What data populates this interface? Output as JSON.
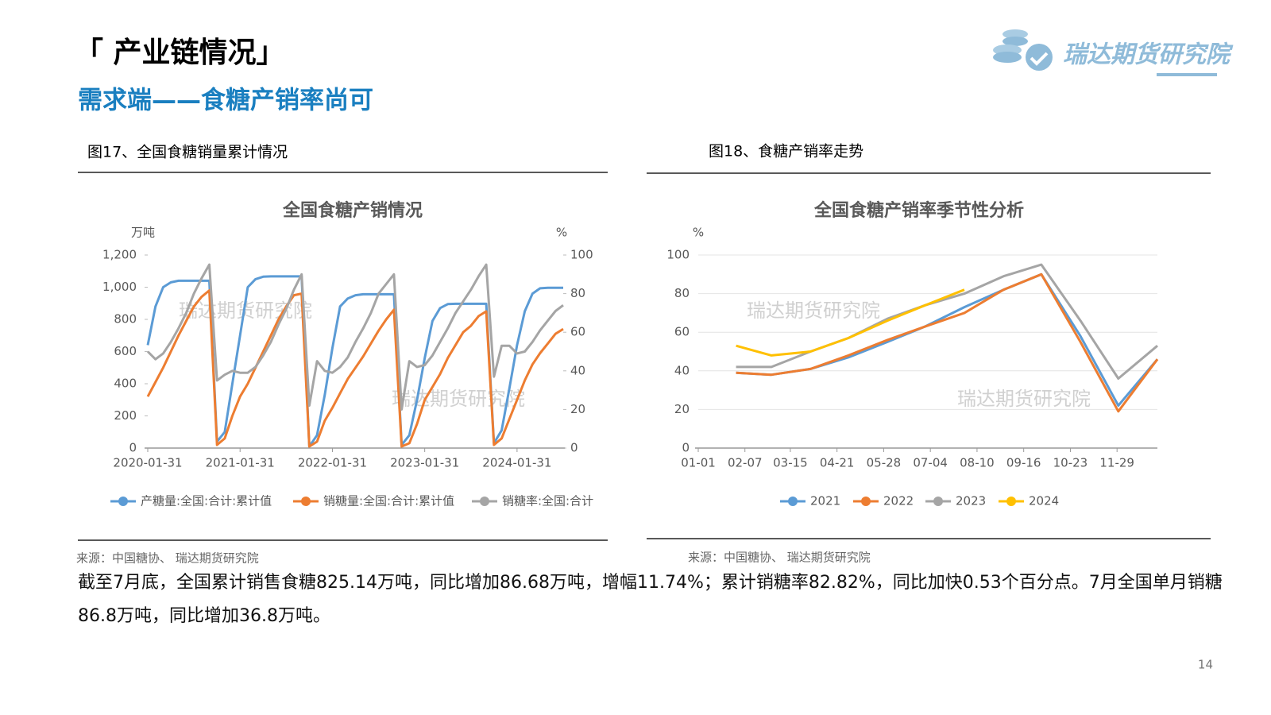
{
  "header": {
    "title": "「 产业链情况」",
    "subtitle": "需求端——食糖产销率尚可",
    "logo": "瑞达期货研究院"
  },
  "figures": [
    {
      "caption": "图17、全国食糖销量累计情况",
      "source": "来源：中国糖协、 瑞达期货研究院"
    },
    {
      "caption": "图18、食糖产销率走势",
      "source": "来源：中国糖协、 瑞达期货研究院"
    }
  ],
  "chart_data": [
    {
      "type": "line",
      "title": "全国食糖产销情况",
      "y_label": "万吨",
      "y2_label": "%",
      "watermark": "瑞达期货研究院",
      "categories": [
        "2020-01-31",
        null,
        null,
        null,
        null,
        null,
        null,
        null,
        null,
        null,
        null,
        null,
        "2021-01-31",
        null,
        null,
        null,
        null,
        null,
        null,
        null,
        null,
        null,
        null,
        null,
        "2022-01-31",
        null,
        null,
        null,
        null,
        null,
        null,
        null,
        null,
        null,
        null,
        null,
        "2023-01-31",
        null,
        null,
        null,
        null,
        null,
        null,
        null,
        null,
        null,
        null,
        null,
        "2024-01-31",
        null,
        null,
        null,
        null,
        null,
        null
      ],
      "series": [
        {
          "name": "产糖量:全国:合计:累计值",
          "color": "#5b9bd5",
          "values": [
            640,
            880,
            1000,
            1030,
            1040,
            1040,
            1040,
            1040,
            1040,
            40,
            100,
            400,
            700,
            1000,
            1050,
            1065,
            1067,
            1067,
            1067,
            1067,
            1067,
            10,
            80,
            330,
            620,
            880,
            930,
            950,
            956,
            956,
            956,
            956,
            956,
            20,
            80,
            300,
            560,
            790,
            870,
            895,
            897,
            897,
            897,
            897,
            897,
            30,
            110,
            370,
            640,
            850,
            960,
            993,
            996,
            996,
            996
          ]
        },
        {
          "name": "销糖量:全国:合计:累计值",
          "color": "#ed7d31",
          "values": [
            320,
            410,
            500,
            600,
            700,
            790,
            880,
            940,
            980,
            20,
            60,
            200,
            320,
            400,
            500,
            600,
            700,
            800,
            880,
            950,
            960,
            10,
            40,
            170,
            250,
            340,
            430,
            500,
            570,
            650,
            730,
            800,
            860,
            10,
            30,
            150,
            300,
            380,
            460,
            560,
            640,
            720,
            760,
            820,
            850,
            20,
            60,
            180,
            300,
            420,
            520,
            590,
            650,
            710,
            740
          ]
        },
        {
          "name": "销糖率:全国:合计",
          "color": "#a5a5a5",
          "axis": "y2",
          "values": [
            50,
            46,
            49,
            55,
            62,
            70,
            80,
            88,
            95,
            35,
            38,
            40,
            39,
            39,
            42,
            48,
            55,
            64,
            72,
            82,
            90,
            22,
            45,
            40,
            39,
            42,
            47,
            55,
            62,
            70,
            80,
            85,
            90,
            20,
            45,
            42,
            43,
            48,
            55,
            62,
            70,
            76,
            82,
            89,
            95,
            37,
            53,
            53,
            49,
            50,
            55,
            61,
            66,
            71,
            74
          ]
        }
      ],
      "ylim": [
        0,
        1200
      ],
      "yticks": [
        0,
        200,
        400,
        600,
        800,
        {
          "value": 1000,
          "label": "1,000"
        },
        {
          "value": 1200,
          "label": "1,200"
        }
      ],
      "y2lim": [
        0,
        100
      ],
      "y2ticks": [
        0,
        20,
        40,
        60,
        80,
        100
      ],
      "grid": false,
      "legend": "bottom"
    },
    {
      "type": "line",
      "title": "全国食糖产销率季节性分析",
      "y_label": "%",
      "watermark": "瑞达期货研究院",
      "x": [
        31,
        59,
        90,
        120,
        151,
        181,
        212,
        243,
        273,
        304,
        334,
        365
      ],
      "xlim": [
        1,
        365
      ],
      "xticks": [
        {
          "value": 1,
          "label": "01-01"
        },
        {
          "value": 38,
          "label": "02-07"
        },
        {
          "value": 74,
          "label": "03-15"
        },
        {
          "value": 111,
          "label": "04-21"
        },
        {
          "value": 148,
          "label": "05-28"
        },
        {
          "value": 185,
          "label": "07-04"
        },
        {
          "value": 222,
          "label": "08-10"
        },
        {
          "value": 259,
          "label": "09-16"
        },
        {
          "value": 296,
          "label": "10-23"
        },
        {
          "value": 333,
          "label": "11-29"
        }
      ],
      "series": [
        {
          "name": "2021",
          "color": "#5b9bd5",
          "values": [
            39,
            38,
            41,
            47,
            55,
            63,
            73,
            82,
            90,
            58,
            22,
            46
          ]
        },
        {
          "name": "2022",
          "color": "#ed7d31",
          "values": [
            39,
            38,
            41,
            48,
            56,
            63,
            70,
            82,
            90,
            55,
            19,
            46
          ]
        },
        {
          "name": "2023",
          "color": "#a5a5a5",
          "values": [
            42,
            42,
            50,
            57,
            67,
            74,
            80,
            89,
            95,
            66,
            36,
            53
          ]
        },
        {
          "name": "2024",
          "color": "#ffc000",
          "values": [
            53,
            48,
            50,
            57,
            66,
            74,
            82,
            null,
            null,
            null,
            null,
            null
          ]
        }
      ],
      "ylim": [
        0,
        100
      ],
      "yticks": [
        0,
        20,
        40,
        60,
        80,
        100
      ],
      "grid": true,
      "legend": "bottom"
    }
  ],
  "body": "截至7月底，全国累计销售食糖825.14万吨，同比增加86.68万吨，增幅11.74%；累计销糖率82.82%，同比加快0.53个百分点。7月全国单月销糖86.8万吨，同比增加36.8万吨。",
  "page_number": "14"
}
